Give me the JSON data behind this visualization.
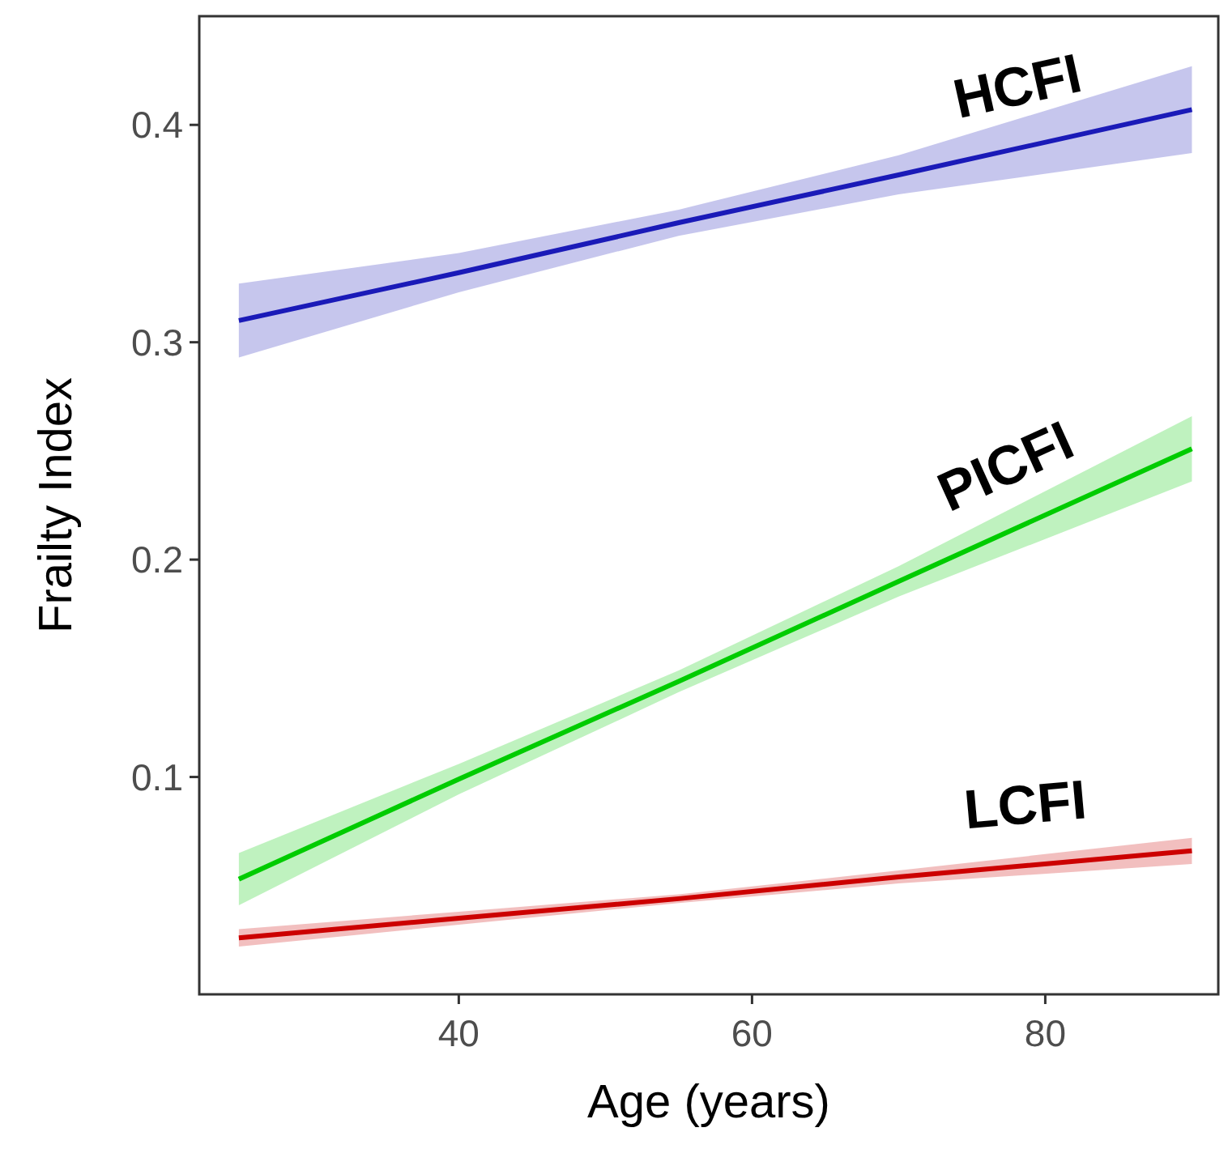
{
  "chart_data": {
    "type": "line",
    "xlabel": "Age (years)",
    "ylabel": "Frailty Index",
    "x": [
      25,
      40,
      55,
      70,
      90
    ],
    "xlim": [
      22.3,
      91.8
    ],
    "xticks": [
      40,
      60,
      80
    ],
    "ylim": [
      0.0,
      0.45
    ],
    "yticks": [
      0.1,
      0.2,
      0.3,
      0.4
    ],
    "grid": false,
    "line_style": "solid",
    "marker": "none",
    "series": [
      {
        "name": "HCFI",
        "color": "#1a1ab8",
        "values": [
          0.31,
          0.332,
          0.355,
          0.377,
          0.407
        ],
        "lower": [
          0.293,
          0.323,
          0.349,
          0.368,
          0.387
        ],
        "upper": [
          0.327,
          0.341,
          0.361,
          0.386,
          0.427
        ]
      },
      {
        "name": "PICFI",
        "color": "#00cc00",
        "values": [
          0.053,
          0.099,
          0.144,
          0.19,
          0.251
        ],
        "lower": [
          0.041,
          0.092,
          0.139,
          0.183,
          0.236
        ],
        "upper": [
          0.065,
          0.106,
          0.149,
          0.197,
          0.266
        ]
      },
      {
        "name": "LCFI",
        "color": "#cc0000",
        "values": [
          0.026,
          0.035,
          0.044,
          0.054,
          0.066
        ],
        "lower": [
          0.022,
          0.032,
          0.042,
          0.051,
          0.06
        ],
        "upper": [
          0.03,
          0.038,
          0.046,
          0.057,
          0.072
        ]
      }
    ]
  }
}
